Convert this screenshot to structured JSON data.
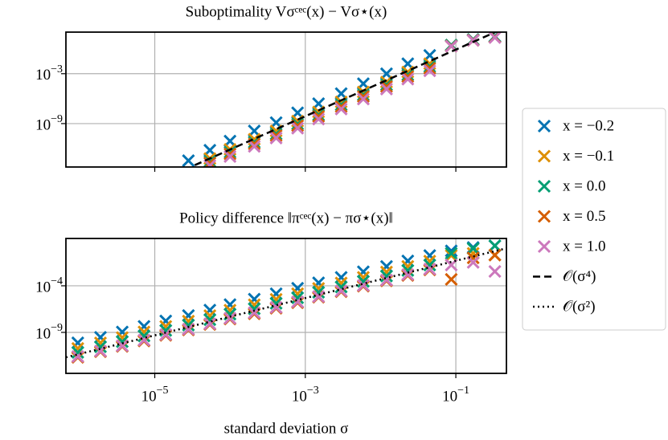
{
  "chart_data": [
    {
      "type": "scatter",
      "title": "Suboptimality Vσᶜᵉᶜ(x) − Vσ⋆(x)",
      "log": true,
      "grid": true,
      "x": [
        9.5e-07,
        1.9e-06,
        3.7e-06,
        7.2e-06,
        1.4e-05,
        2.8e-05,
        5.4e-05,
        0.0001,
        0.00021,
        0.00041,
        0.00079,
        0.0015,
        0.003,
        0.0059,
        0.012,
        0.023,
        0.045,
        0.087,
        0.17,
        0.33
      ],
      "xlim": [
        6.6e-07,
        0.47
      ],
      "ylim": [
        6e-15,
        100
      ],
      "yticks": [
        {
          "value": 0.001,
          "label": "10−3"
        },
        {
          "value": 1e-09,
          "label": "10−9"
        }
      ],
      "series": [
        {
          "name": "x = −0.2",
          "color": "#0173b2",
          "values": [
            null,
            null,
            null,
            null,
            null,
            3.5e-14,
            6.3e-13,
            7.9e-12,
            1.3e-10,
            1.3e-09,
            2e-08,
            2.5e-07,
            4e-06,
            6.3e-05,
            0.001,
            0.016,
            0.16,
            2.5,
            13,
            32
          ]
        },
        {
          "name": "x = −0.1",
          "color": "#de8f05",
          "values": [
            null,
            null,
            null,
            null,
            null,
            null,
            6.3e-14,
            7.9e-13,
            1.3e-11,
            1.3e-10,
            2e-09,
            2.5e-08,
            4e-07,
            6.3e-06,
            0.0001,
            0.0016,
            0.016,
            2.0,
            10,
            25
          ]
        },
        {
          "name": "x = 0.0",
          "color": "#029e73",
          "values": [
            null,
            null,
            null,
            null,
            null,
            null,
            2.8e-14,
            3.5e-13,
            5.6e-12,
            5.6e-11,
            8.9e-10,
            1.1e-08,
            1.8e-07,
            2.8e-06,
            4.5e-05,
            0.00071,
            0.0071,
            2.8,
            13,
            28
          ]
        },
        {
          "name": "x = 0.5",
          "color": "#d55e00",
          "values": [
            null,
            null,
            null,
            null,
            null,
            null,
            1.8e-14,
            2.2e-13,
            3.5e-12,
            3.5e-11,
            5.6e-10,
            7.1e-09,
            1.1e-07,
            1.8e-06,
            2.8e-05,
            0.00045,
            0.0045,
            2.2,
            11,
            25
          ]
        },
        {
          "name": "x = 1.0",
          "color": "#cc78bc",
          "values": [
            null,
            null,
            null,
            null,
            null,
            null,
            8.9e-15,
            1.1e-13,
            1.8e-12,
            1.8e-11,
            2.8e-10,
            3.5e-09,
            5.6e-08,
            8.9e-07,
            1.4e-05,
            0.00022,
            0.0022,
            2.0,
            10,
            22
          ]
        },
        {
          "name": "𝒪(σ⁴)",
          "type": "line",
          "style": "dashed",
          "color": "#000000",
          "x": [
            3.4e-05,
            0.47
          ],
          "values": [
            1e-14,
            390
          ]
        }
      ]
    },
    {
      "type": "scatter",
      "title": "Policy difference ‖πᶜᵉᶜ(x) − πσ⋆(x)‖",
      "log": true,
      "grid": true,
      "x": [
        9.5e-07,
        1.9e-06,
        3.7e-06,
        7.2e-06,
        1.4e-05,
        2.8e-05,
        5.4e-05,
        0.0001,
        0.00021,
        0.00041,
        0.00079,
        0.0015,
        0.003,
        0.0059,
        0.012,
        0.023,
        0.045,
        0.087,
        0.17,
        0.33
      ],
      "xlim": [
        6.6e-07,
        0.47
      ],
      "ylim": [
        4e-14,
        12
      ],
      "xlabel": "standard deviation σ",
      "xticks": [
        {
          "value": 1e-05,
          "label": "10−5"
        },
        {
          "value": 0.001,
          "label": "10−3"
        },
        {
          "value": 0.1,
          "label": "10−1"
        }
      ],
      "yticks": [
        {
          "value": 0.0001,
          "label": "10−4"
        },
        {
          "value": 1e-09,
          "label": "10−9"
        }
      ],
      "series": [
        {
          "color": "#0173b2",
          "values": [
            7.6e-11,
            3e-10,
            1.1e-09,
            4.4e-09,
            1.7e-08,
            6.5e-08,
            2.5e-07,
            9.6e-07,
            3.7e-06,
            1.4e-05,
            5.5e-05,
            0.00021,
            0.00081,
            0.0032,
            0.012,
            0.047,
            0.18,
            0.56,
            1.3,
            2.0
          ]
        },
        {
          "color": "#de8f05",
          "values": [
            1.9e-11,
            7.5e-11,
            2.8e-10,
            1.1e-09,
            4.3e-09,
            1.6e-08,
            6.3e-08,
            2.4e-07,
            9.3e-07,
            3.5e-06,
            1.4e-05,
            5.3e-05,
            0.0002,
            0.0008,
            0.003,
            0.012,
            0.045,
            0.18,
            0.3,
            0.2
          ]
        },
        {
          "color": "#029e73",
          "values": [
            7.1e-12,
            2.8e-11,
            1e-10,
            4.1e-10,
            1.6e-09,
            6e-09,
            2.3e-08,
            8.9e-08,
            3.4e-07,
            1.3e-06,
            5.1e-06,
            2e-05,
            7.5e-05,
            0.0003,
            0.0011,
            0.0044,
            0.017,
            0.3,
            1.0,
            2.0
          ]
        },
        {
          "color": "#d55e00",
          "values": [
            2.1e-12,
            8.4e-12,
            3.1e-11,
            1.2e-10,
            4.8e-10,
            1.8e-09,
            7e-09,
            2.7e-08,
            1e-07,
            3.9e-07,
            1.5e-06,
            5.9e-06,
            2.3e-05,
            9e-05,
            0.00034,
            0.0013,
            0.005,
            0.00049,
            0.1,
            0.2
          ]
        },
        {
          "color": "#cc78bc",
          "values": [
            2.6e-12,
            1e-11,
            3.7e-11,
            1.5e-10,
            5.8e-10,
            2.2e-09,
            8.5e-09,
            3.3e-08,
            1.3e-07,
            4.8e-07,
            1.9e-06,
            7.1e-06,
            2.8e-05,
            0.00011,
            0.00041,
            0.0016,
            0.0061,
            0.017,
            0.032,
            0.0035
          ]
        },
        {
          "name": "𝒪(σ²)",
          "type": "line",
          "style": "dotted",
          "color": "#000000",
          "x": [
            6.6e-07,
            0.47
          ],
          "values": [
            2.1e-12,
            1.07
          ]
        }
      ]
    }
  ]
}
